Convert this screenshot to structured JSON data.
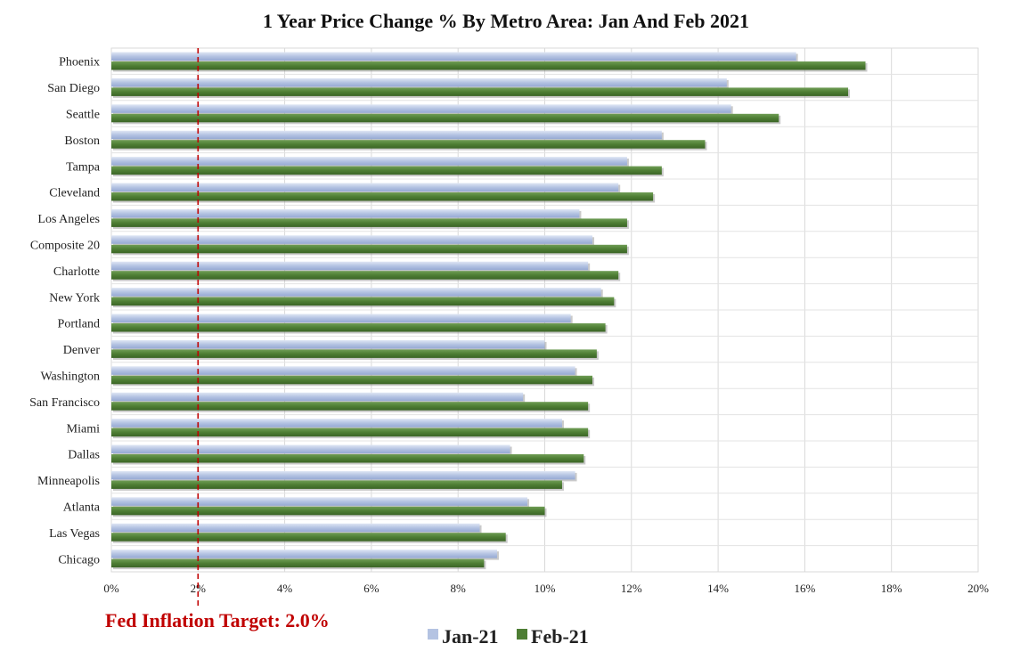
{
  "chart_data": {
    "type": "bar",
    "orientation": "horizontal",
    "title": "1 Year Price Change % By Metro Area: Jan And Feb 2021",
    "categories": [
      "Phoenix",
      "San Diego",
      "Seattle",
      "Boston",
      "Tampa",
      "Cleveland",
      "Los Angeles",
      "Composite 20",
      "Charlotte",
      "New York",
      "Portland",
      "Denver",
      "Washington",
      "San Francisco",
      "Miami",
      "Dallas",
      "Minneapolis",
      "Atlanta",
      "Las Vegas",
      "Chicago"
    ],
    "series": [
      {
        "name": "Jan-21",
        "color": "#b4c3e2",
        "values": [
          15.8,
          14.2,
          14.3,
          12.7,
          11.9,
          11.7,
          10.8,
          11.1,
          11.0,
          11.3,
          10.6,
          10.0,
          10.7,
          9.5,
          10.4,
          9.2,
          10.7,
          9.6,
          8.5,
          8.9
        ]
      },
      {
        "name": "Feb-21",
        "color": "#4e7e34",
        "values": [
          17.4,
          17.0,
          15.4,
          13.7,
          12.7,
          12.5,
          11.9,
          11.9,
          11.7,
          11.6,
          11.4,
          11.2,
          11.1,
          11.0,
          11.0,
          10.9,
          10.4,
          10.0,
          9.1,
          8.6
        ]
      }
    ],
    "xlim": [
      0,
      20
    ],
    "x_ticks": [
      "0%",
      "2%",
      "4%",
      "6%",
      "8%",
      "10%",
      "12%",
      "14%",
      "16%",
      "18%",
      "20%"
    ],
    "grid": true,
    "legend_position": "bottom",
    "reference_line": {
      "value": 2.0,
      "label": "Fed Inflation Target: 2.0%",
      "color": "#c00000"
    }
  }
}
